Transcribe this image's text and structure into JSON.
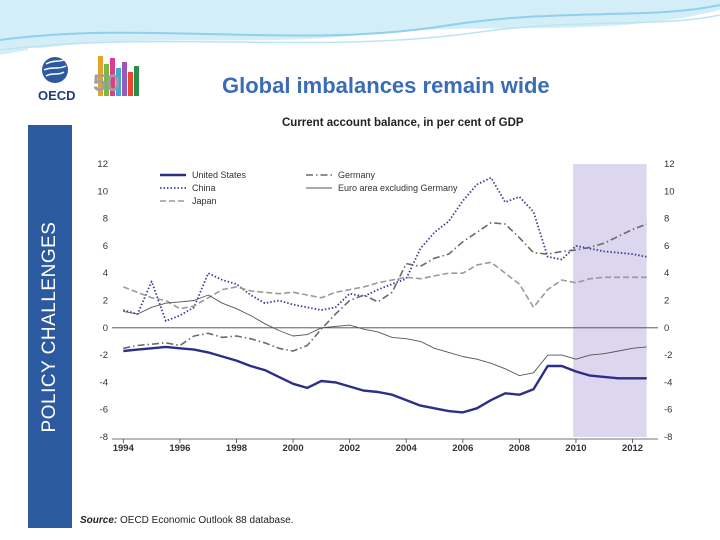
{
  "slide": {
    "title": "Global imbalances remain wide",
    "sidebar_label": "POLICY CHALLENGES",
    "logo_text": "OECD",
    "anniversary_text": "50",
    "source_prefix": "Source:",
    "source_text": " OECD Economic Outlook 88 database."
  },
  "colors": {
    "sidebar": "#2c5aa0",
    "title": "#3a6db5",
    "forecast_band": "#dcd6ee",
    "us": "#2b2f86",
    "china": "#3a3f9a",
    "germany": "#6a6a6a",
    "japan": "#9a9a9a",
    "euro": "#555555"
  },
  "chart_data": {
    "type": "line",
    "title": "Current account balance, in per cent of GDP",
    "xlabel": "",
    "ylabel": "",
    "xlim": [
      1993.6,
      2012.9
    ],
    "ylim": [
      -8,
      12
    ],
    "yticks": [
      12,
      10,
      8,
      6,
      4,
      2,
      0,
      -2,
      -4,
      -6,
      -8
    ],
    "xticks": [
      1994,
      1996,
      1998,
      2000,
      2002,
      2004,
      2006,
      2008,
      2010,
      2012
    ],
    "shaded_region": [
      2009.9,
      2012.5
    ],
    "legend": [
      {
        "name": "United States",
        "style": "solid-thick"
      },
      {
        "name": "China",
        "style": "dotted"
      },
      {
        "name": "Japan",
        "style": "dashed"
      },
      {
        "name": "Germany",
        "style": "dash-dot"
      },
      {
        "name": "Euro area excluding Germany",
        "style": "solid-thin"
      }
    ],
    "series": [
      {
        "name": "United States",
        "x": [
          1994.0,
          1994.5,
          1995.0,
          1995.5,
          1996.0,
          1996.5,
          1997.0,
          1997.5,
          1998.0,
          1998.5,
          1999.0,
          1999.5,
          2000.0,
          2000.5,
          2001.0,
          2001.5,
          2002.0,
          2002.5,
          2003.0,
          2003.5,
          2004.0,
          2004.5,
          2005.0,
          2005.5,
          2006.0,
          2006.5,
          2007.0,
          2007.5,
          2008.0,
          2008.5,
          2009.0,
          2009.5,
          2010.0,
          2010.5,
          2011.0,
          2011.5,
          2012.0,
          2012.5
        ],
        "values": [
          -1.7,
          -1.6,
          -1.5,
          -1.4,
          -1.5,
          -1.6,
          -1.8,
          -2.1,
          -2.4,
          -2.8,
          -3.1,
          -3.6,
          -4.1,
          -4.4,
          -3.9,
          -4.0,
          -4.3,
          -4.6,
          -4.7,
          -4.9,
          -5.3,
          -5.7,
          -5.9,
          -6.1,
          -6.2,
          -5.9,
          -5.3,
          -4.8,
          -4.9,
          -4.5,
          -2.8,
          -2.8,
          -3.2,
          -3.5,
          -3.6,
          -3.7,
          -3.7,
          -3.7
        ]
      },
      {
        "name": "China",
        "x": [
          1994.0,
          1994.5,
          1995.0,
          1995.5,
          1996.0,
          1996.5,
          1997.0,
          1997.5,
          1998.0,
          1998.5,
          1999.0,
          1999.5,
          2000.0,
          2000.5,
          2001.0,
          2001.5,
          2002.0,
          2002.5,
          2003.0,
          2003.5,
          2004.0,
          2004.5,
          2005.0,
          2005.5,
          2006.0,
          2006.5,
          2007.0,
          2007.5,
          2008.0,
          2008.5,
          2009.0,
          2009.5,
          2010.0,
          2010.5,
          2011.0,
          2011.5,
          2012.0,
          2012.5
        ],
        "values": [
          1.3,
          1.0,
          3.4,
          0.5,
          0.9,
          1.5,
          4.0,
          3.5,
          3.2,
          2.4,
          1.8,
          2.0,
          1.7,
          1.5,
          1.3,
          1.5,
          2.5,
          2.3,
          2.8,
          3.2,
          3.6,
          5.8,
          7.0,
          7.8,
          9.3,
          10.5,
          11.0,
          9.2,
          9.6,
          8.5,
          5.2,
          5.0,
          6.0,
          5.8,
          5.6,
          5.5,
          5.4,
          5.2
        ]
      },
      {
        "name": "Germany",
        "x": [
          1994.0,
          1994.5,
          1995.0,
          1995.5,
          1996.0,
          1996.5,
          1997.0,
          1997.5,
          1998.0,
          1998.5,
          1999.0,
          1999.5,
          2000.0,
          2000.5,
          2001.0,
          2001.5,
          2002.0,
          2002.5,
          2003.0,
          2003.5,
          2004.0,
          2004.5,
          2005.0,
          2005.5,
          2006.0,
          2006.5,
          2007.0,
          2007.5,
          2008.0,
          2008.5,
          2009.0,
          2009.5,
          2010.0,
          2010.5,
          2011.0,
          2011.5,
          2012.0,
          2012.5
        ],
        "values": [
          -1.5,
          -1.3,
          -1.2,
          -1.1,
          -1.3,
          -0.6,
          -0.4,
          -0.7,
          -0.6,
          -0.8,
          -1.1,
          -1.5,
          -1.7,
          -1.3,
          -0.1,
          1.0,
          2.0,
          2.4,
          1.9,
          2.6,
          4.7,
          4.5,
          5.1,
          5.4,
          6.3,
          7.0,
          7.7,
          7.6,
          6.6,
          5.5,
          5.4,
          5.6,
          5.7,
          5.9,
          6.2,
          6.7,
          7.2,
          7.6
        ]
      },
      {
        "name": "Japan",
        "x": [
          1994.0,
          1994.5,
          1995.0,
          1995.5,
          1996.0,
          1996.5,
          1997.0,
          1997.5,
          1998.0,
          1998.5,
          1999.0,
          1999.5,
          2000.0,
          2000.5,
          2001.0,
          2001.5,
          2002.0,
          2002.5,
          2003.0,
          2003.5,
          2004.0,
          2004.5,
          2005.0,
          2005.5,
          2006.0,
          2006.5,
          2007.0,
          2007.5,
          2008.0,
          2008.5,
          2009.0,
          2009.5,
          2010.0,
          2010.5,
          2011.0,
          2011.5,
          2012.0,
          2012.5
        ],
        "values": [
          3.0,
          2.6,
          2.2,
          2.0,
          1.4,
          1.6,
          2.2,
          2.8,
          3.0,
          2.7,
          2.6,
          2.5,
          2.6,
          2.4,
          2.2,
          2.6,
          2.8,
          3.0,
          3.3,
          3.5,
          3.7,
          3.6,
          3.8,
          4.0,
          4.0,
          4.6,
          4.8,
          4.0,
          3.2,
          1.5,
          2.8,
          3.5,
          3.3,
          3.6,
          3.7,
          3.7,
          3.7,
          3.7
        ]
      },
      {
        "name": "Euro area excluding Germany",
        "x": [
          1994.0,
          1994.5,
          1995.0,
          1995.5,
          1996.0,
          1996.5,
          1997.0,
          1997.5,
          1998.0,
          1998.5,
          1999.0,
          1999.5,
          2000.0,
          2000.5,
          2001.0,
          2001.5,
          2002.0,
          2002.5,
          2003.0,
          2003.5,
          2004.0,
          2004.5,
          2005.0,
          2005.5,
          2006.0,
          2006.5,
          2007.0,
          2007.5,
          2008.0,
          2008.5,
          2009.0,
          2009.5,
          2010.0,
          2010.5,
          2011.0,
          2011.5,
          2012.0,
          2012.5
        ],
        "values": [
          1.2,
          1.0,
          1.5,
          1.8,
          1.9,
          2.0,
          2.4,
          1.8,
          1.4,
          0.9,
          0.3,
          -0.2,
          -0.6,
          -0.5,
          0.0,
          0.1,
          0.2,
          -0.1,
          -0.3,
          -0.7,
          -0.8,
          -1.0,
          -1.5,
          -1.8,
          -2.1,
          -2.3,
          -2.6,
          -3.0,
          -3.5,
          -3.3,
          -2.0,
          -2.0,
          -2.3,
          -2.0,
          -1.9,
          -1.7,
          -1.5,
          -1.4
        ]
      }
    ]
  }
}
